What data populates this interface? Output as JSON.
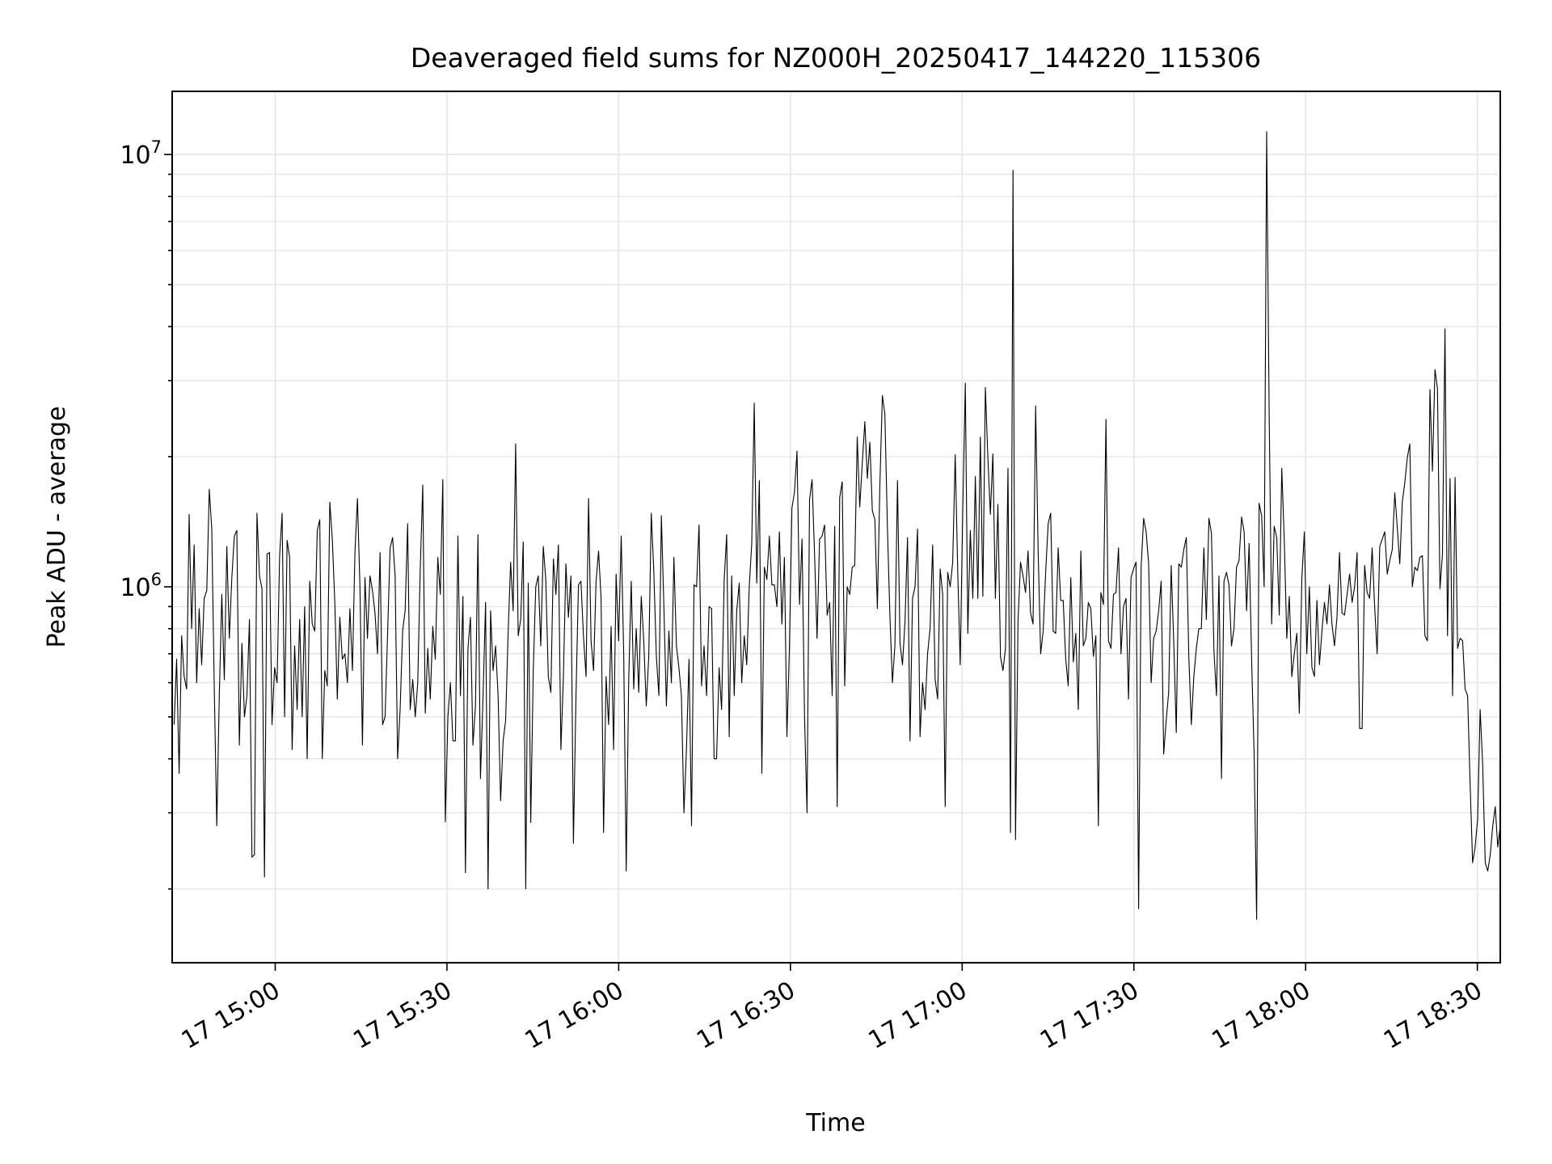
{
  "chart_data": {
    "type": "line",
    "title": "Deaveraged field sums for NZ000H_20250417_144220_115306",
    "xlabel": "Time",
    "ylabel": "Peak ADU - average",
    "yscale": "log",
    "grid": true,
    "line_color": "#000000",
    "grid_color": "#e6e6e6",
    "xlim": [
      "2025-04-17 14:42",
      "2025-04-17 18:34"
    ],
    "ylim": [
      135000,
      14000000
    ],
    "x_ticks": [
      "17 15:00",
      "17 15:30",
      "17 16:00",
      "17 16:30",
      "17 17:00",
      "17 17:30",
      "17 18:00",
      "17 18:30"
    ],
    "y_ticks": [
      {
        "base": "10",
        "exp": "6",
        "value": 1000000
      },
      {
        "base": "10",
        "exp": "7",
        "value": 10000000
      }
    ],
    "series": [
      {
        "x_start": "2025-04-17 14:42:20",
        "x_end": "2025-04-17 18:34:00",
        "values": [
          480000,
          680000,
          370000,
          770000,
          620000,
          580000,
          1470000,
          800000,
          1250000,
          600000,
          890000,
          660000,
          940000,
          980000,
          1680000,
          1360000,
          580000,
          280000,
          560000,
          960000,
          610000,
          1240000,
          760000,
          1050000,
          1310000,
          1350000,
          430000,
          740000,
          500000,
          560000,
          840000,
          237000,
          240000,
          1480000,
          1060000,
          990000,
          213000,
          1190000,
          1200000,
          480000,
          650000,
          600000,
          1180000,
          1480000,
          500000,
          1280000,
          1170000,
          420000,
          730000,
          520000,
          840000,
          500000,
          900000,
          400000,
          1030000,
          820000,
          790000,
          1350000,
          1430000,
          400000,
          640000,
          590000,
          1570000,
          1290000,
          920000,
          550000,
          850000,
          680000,
          700000,
          600000,
          890000,
          640000,
          1200000,
          1600000,
          1000000,
          430000,
          1050000,
          760000,
          1060000,
          980000,
          870000,
          700000,
          1200000,
          480000,
          500000,
          780000,
          1230000,
          1300000,
          1060000,
          400000,
          520000,
          790000,
          880000,
          1400000,
          520000,
          610000,
          500000,
          600000,
          1100000,
          1720000,
          510000,
          720000,
          550000,
          810000,
          680000,
          1170000,
          960000,
          1770000,
          286000,
          500000,
          600000,
          440000,
          440000,
          1310000,
          560000,
          950000,
          218000,
          720000,
          850000,
          430000,
          530000,
          1320000,
          360000,
          560000,
          920000,
          200000,
          880000,
          640000,
          730000,
          560000,
          320000,
          440000,
          490000,
          780000,
          1140000,
          880000,
          2140000,
          770000,
          840000,
          1270000,
          200000,
          1020000,
          285000,
          640000,
          1000000,
          1060000,
          730000,
          1240000,
          1040000,
          620000,
          570000,
          1160000,
          960000,
          1250000,
          420000,
          620000,
          1130000,
          850000,
          1060000,
          255000,
          550000,
          1010000,
          1030000,
          770000,
          620000,
          1600000,
          750000,
          640000,
          1030000,
          1210000,
          940000,
          270000,
          620000,
          480000,
          810000,
          420000,
          1070000,
          750000,
          1310000,
          700000,
          220000,
          610000,
          1030000,
          580000,
          800000,
          570000,
          950000,
          750000,
          530000,
          690000,
          1480000,
          1090000,
          690000,
          560000,
          1460000,
          900000,
          530000,
          790000,
          600000,
          1170000,
          730000,
          650000,
          560000,
          300000,
          420000,
          680000,
          280000,
          1010000,
          1000000,
          1390000,
          590000,
          730000,
          560000,
          900000,
          890000,
          400000,
          400000,
          650000,
          520000,
          1040000,
          1320000,
          450000,
          1060000,
          560000,
          880000,
          1020000,
          600000,
          770000,
          660000,
          1000000,
          1260000,
          2660000,
          1020000,
          1760000,
          370000,
          1110000,
          1040000,
          1310000,
          1010000,
          1010000,
          900000,
          1340000,
          820000,
          1170000,
          450000,
          720000,
          1520000,
          1660000,
          2060000,
          910000,
          1290000,
          500000,
          300000,
          1590000,
          1770000,
          1190000,
          760000,
          1290000,
          1310000,
          1390000,
          860000,
          920000,
          560000,
          1380000,
          310000,
          1610000,
          1750000,
          590000,
          1000000,
          960000,
          1110000,
          1120000,
          2220000,
          1530000,
          1940000,
          2410000,
          1780000,
          2160000,
          1500000,
          1430000,
          890000,
          1720000,
          2770000,
          2510000,
          1380000,
          860000,
          600000,
          730000,
          1760000,
          740000,
          660000,
          830000,
          1300000,
          440000,
          940000,
          1000000,
          1360000,
          450000,
          600000,
          520000,
          700000,
          800000,
          1250000,
          610000,
          550000,
          1100000,
          960000,
          310000,
          1080000,
          1000000,
          1140000,
          2020000,
          1090000,
          660000,
          1490000,
          2960000,
          780000,
          1350000,
          940000,
          1800000,
          940000,
          2220000,
          950000,
          2890000,
          1990000,
          1470000,
          2030000,
          940000,
          1550000,
          690000,
          640000,
          720000,
          1880000,
          270000,
          9200000,
          260000,
          830000,
          1140000,
          1060000,
          970000,
          1210000,
          870000,
          820000,
          2620000,
          1210000,
          700000,
          790000,
          1080000,
          1400000,
          1480000,
          790000,
          780000,
          1230000,
          930000,
          930000,
          680000,
          590000,
          1050000,
          670000,
          780000,
          520000,
          1210000,
          730000,
          760000,
          920000,
          890000,
          690000,
          770000,
          280000,
          970000,
          910000,
          2440000,
          750000,
          720000,
          960000,
          970000,
          1230000,
          700000,
          900000,
          940000,
          550000,
          1050000,
          1100000,
          1140000,
          180000,
          1110000,
          1440000,
          1340000,
          1130000,
          600000,
          760000,
          790000,
          880000,
          1030000,
          410000,
          490000,
          570000,
          1120000,
          740000,
          460000,
          1130000,
          1110000,
          1220000,
          1300000,
          690000,
          480000,
          620000,
          720000,
          800000,
          800000,
          1230000,
          840000,
          1440000,
          1330000,
          710000,
          560000,
          1060000,
          360000,
          1030000,
          1080000,
          1010000,
          730000,
          800000,
          1110000,
          1150000,
          1450000,
          1340000,
          880000,
          1260000,
          680000,
          410000,
          170000,
          1560000,
          1460000,
          1000000,
          11300000,
          2510000,
          820000,
          1380000,
          1300000,
          860000,
          1880000,
          1280000,
          760000,
          950000,
          620000,
          700000,
          780000,
          510000,
          1040000,
          1340000,
          700000,
          1000000,
          650000,
          620000,
          930000,
          660000,
          790000,
          920000,
          820000,
          1010000,
          820000,
          730000,
          850000,
          1200000,
          870000,
          860000,
          960000,
          1070000,
          920000,
          1000000,
          1200000,
          470000,
          470000,
          1120000,
          970000,
          940000,
          1230000,
          900000,
          700000,
          1240000,
          1290000,
          1340000,
          1070000,
          1150000,
          1220000,
          1650000,
          1370000,
          1130000,
          1570000,
          1740000,
          1990000,
          2140000,
          1000000,
          1110000,
          1090000,
          1170000,
          1180000,
          770000,
          750000,
          2860000,
          1850000,
          3180000,
          2880000,
          990000,
          1190000,
          3950000,
          770000,
          1780000,
          560000,
          1790000,
          720000,
          760000,
          750000,
          580000,
          560000,
          350000,
          230000,
          250000,
          290000,
          520000,
          390000,
          230000,
          220000,
          240000,
          280000,
          310000,
          250000,
          280000
        ]
      }
    ]
  }
}
